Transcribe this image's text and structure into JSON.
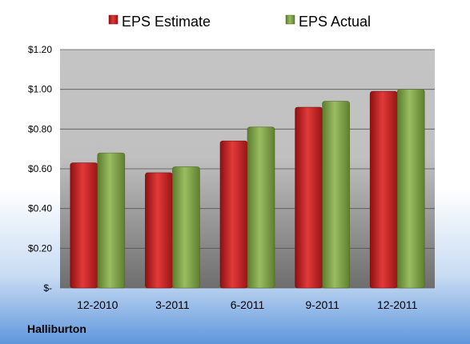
{
  "company": "Halliburton",
  "colors": {
    "estimate": "#d42a2a",
    "actual": "#86ad4f"
  },
  "chart_data": {
    "type": "bar",
    "title": "",
    "xlabel": "",
    "ylabel": "",
    "categories": [
      "12-2010",
      "3-2011",
      "6-2011",
      "9-2011",
      "12-2011"
    ],
    "series": [
      {
        "name": "EPS Estimate",
        "values": [
          0.63,
          0.58,
          0.74,
          0.91,
          0.99
        ]
      },
      {
        "name": "EPS Actual",
        "values": [
          0.68,
          0.61,
          0.81,
          0.94,
          1.0
        ]
      }
    ],
    "ylim": [
      0,
      1.2
    ],
    "y_ticks": [
      0,
      0.2,
      0.4,
      0.6,
      0.8,
      1.0,
      1.2
    ],
    "y_tick_labels": [
      "$-",
      "$0.20",
      "$0.40",
      "$0.60",
      "$0.80",
      "$1.00",
      "$1.20"
    ],
    "grid": true,
    "legend_position": "top"
  }
}
